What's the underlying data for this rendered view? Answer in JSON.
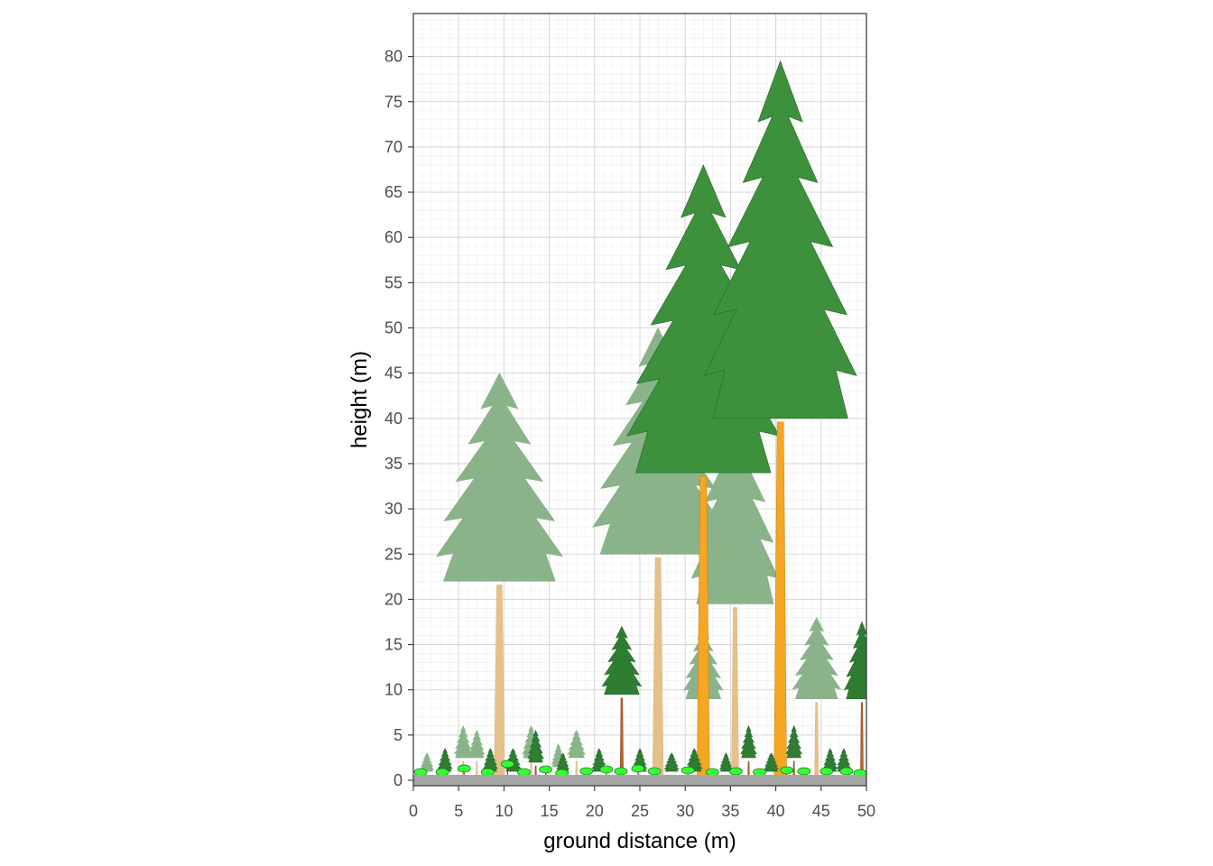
{
  "chart_data": {
    "type": "scatter",
    "title": "",
    "xlabel": "ground distance (m)",
    "ylabel": "height (m)",
    "xlim": [
      0,
      50
    ],
    "ylim": [
      0,
      80
    ],
    "x_ticks": [
      "0",
      "5",
      "10",
      "15",
      "20",
      "25",
      "30",
      "35",
      "40",
      "45",
      "50"
    ],
    "y_ticks": [
      "0",
      "5",
      "10",
      "15",
      "20",
      "25",
      "30",
      "35",
      "40",
      "45",
      "50",
      "55",
      "60",
      "65",
      "70",
      "75",
      "80"
    ],
    "grid": true,
    "legend": "none",
    "colors": {
      "background_trees": "#8ab38a",
      "foreground_trees": "#3d913d",
      "dark_trees": "#2e7d32",
      "shrubs": "#33ff33",
      "pale_trunk": "#e6c08a",
      "bright_trunk": "#f5a623",
      "ground": "#a6a6a6"
    },
    "series": [
      {
        "name": "",
        "role": "background",
        "points": [
          {
            "x": 9.5,
            "height": 45,
            "crown_base": 22,
            "crown_width": 14.5
          },
          {
            "x": 27,
            "height": 50,
            "crown_base": 25,
            "crown_width": 15
          },
          {
            "x": 35.5,
            "height": 43,
            "crown_base": 19.5,
            "crown_width": 10
          },
          {
            "x": 32,
            "height": 17,
            "crown_base": 9,
            "crown_width": 4.5
          },
          {
            "x": 44.5,
            "height": 18,
            "crown_base": 9,
            "crown_width": 5.5
          },
          {
            "x": 5.5,
            "height": 6,
            "crown_base": 2.5,
            "crown_width": 2
          },
          {
            "x": 13,
            "height": 6,
            "crown_base": 2.5,
            "crown_width": 2
          },
          {
            "x": 18,
            "height": 5.5,
            "crown_base": 2.5,
            "crown_width": 2
          },
          {
            "x": 7,
            "height": 5.5,
            "crown_base": 2.5,
            "crown_width": 1.8
          },
          {
            "x": 1.5,
            "height": 3,
            "crown_base": 1,
            "crown_width": 1.5
          },
          {
            "x": 16,
            "height": 4,
            "crown_base": 1.5,
            "crown_width": 1.5
          }
        ]
      },
      {
        "name": "",
        "role": "foreground",
        "points": [
          {
            "x": 32,
            "height": 68,
            "crown_base": 34,
            "crown_width": 17.5
          },
          {
            "x": 40.5,
            "height": 79.5,
            "crown_base": 40,
            "crown_width": 17.5
          },
          {
            "x": 23,
            "height": 17,
            "crown_base": 9.5,
            "crown_width": 4.5
          },
          {
            "x": 49.5,
            "height": 17.5,
            "crown_base": 9,
            "crown_width": 4
          },
          {
            "x": 37,
            "height": 6,
            "crown_base": 2.5,
            "crown_width": 1.8
          },
          {
            "x": 42,
            "height": 6,
            "crown_base": 2.5,
            "crown_width": 1.8
          },
          {
            "x": 13.5,
            "height": 5.5,
            "crown_base": 2,
            "crown_width": 1.8
          },
          {
            "x": 11,
            "height": 3.5,
            "crown_base": 1,
            "crown_width": 1.8
          },
          {
            "x": 31,
            "height": 3.5,
            "crown_base": 1,
            "crown_width": 1.8
          },
          {
            "x": 3.5,
            "height": 3.5,
            "crown_base": 1,
            "crown_width": 1.6
          },
          {
            "x": 8.5,
            "height": 3.5,
            "crown_base": 1,
            "crown_width": 1.6
          },
          {
            "x": 20.5,
            "height": 3.5,
            "crown_base": 1,
            "crown_width": 1.6
          },
          {
            "x": 25,
            "height": 3.5,
            "crown_base": 1,
            "crown_width": 1.6
          },
          {
            "x": 28.5,
            "height": 3,
            "crown_base": 1,
            "crown_width": 1.6
          },
          {
            "x": 39.5,
            "height": 3,
            "crown_base": 1,
            "crown_width": 1.6
          },
          {
            "x": 47.5,
            "height": 3.5,
            "crown_base": 1,
            "crown_width": 1.6
          },
          {
            "x": 46,
            "height": 3.5,
            "crown_base": 1,
            "crown_width": 1.6
          },
          {
            "x": 16.5,
            "height": 3,
            "crown_base": 1,
            "crown_width": 1.4
          },
          {
            "x": 34.5,
            "height": 3,
            "crown_base": 1,
            "crown_width": 1.4
          }
        ]
      },
      {
        "name": "",
        "role": "shrubs",
        "points": [
          {
            "x": 0.8,
            "height": 0.9
          },
          {
            "x": 3.2,
            "height": 0.9
          },
          {
            "x": 5.6,
            "height": 1.3
          },
          {
            "x": 8.2,
            "height": 0.9
          },
          {
            "x": 10.4,
            "height": 1.8
          },
          {
            "x": 12.2,
            "height": 0.9
          },
          {
            "x": 14.6,
            "height": 1.2
          },
          {
            "x": 16.4,
            "height": 0.8
          },
          {
            "x": 19.1,
            "height": 1.0
          },
          {
            "x": 21.3,
            "height": 1.2
          },
          {
            "x": 22.9,
            "height": 1.0
          },
          {
            "x": 24.8,
            "height": 1.3
          },
          {
            "x": 26.6,
            "height": 1.0
          },
          {
            "x": 30.3,
            "height": 1.1
          },
          {
            "x": 33.0,
            "height": 0.9
          },
          {
            "x": 35.6,
            "height": 1.0
          },
          {
            "x": 38.2,
            "height": 0.9
          },
          {
            "x": 41.2,
            "height": 1.1
          },
          {
            "x": 43.1,
            "height": 1.0
          },
          {
            "x": 45.6,
            "height": 1.0
          },
          {
            "x": 47.8,
            "height": 1.0
          },
          {
            "x": 49.3,
            "height": 0.8
          }
        ]
      }
    ]
  }
}
